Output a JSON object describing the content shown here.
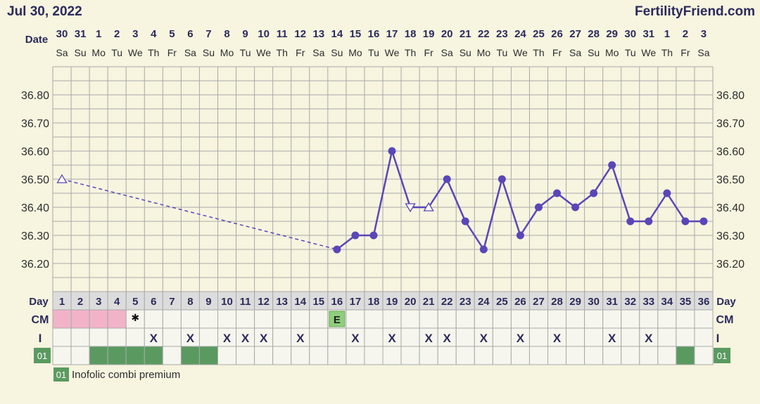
{
  "header": {
    "date_title": "Jul 30, 2022",
    "site": "FertilityFriend.com"
  },
  "labels": {
    "date": "Date",
    "day": "Day",
    "cm": "CM",
    "intercourse": "I",
    "med_code": "01"
  },
  "legend": {
    "code": "01",
    "text": "Inofolic combi premium"
  },
  "colors": {
    "background": "#f7f4df",
    "grid": "#a9a9a9",
    "cell_bg": "#f6f6ef",
    "day_row_bg": "#dcdcdc",
    "line": "#5a46b8",
    "period_pink": "#f2b3c8",
    "med_green": "#5a9a60",
    "egg_white_green": "#8fce7c",
    "label_text": "#2b2a5c"
  },
  "chart_data": {
    "type": "line",
    "title": "",
    "ylabel": "",
    "ylim": [
      36.1,
      36.9
    ],
    "yticks": [
      36.2,
      36.3,
      36.4,
      36.5,
      36.6,
      36.7,
      36.8
    ],
    "yticks_labels": [
      "36.20",
      "36.30",
      "36.40",
      "36.50",
      "36.60",
      "36.70",
      "36.80"
    ],
    "grid": true,
    "dates": [
      "30",
      "31",
      "1",
      "2",
      "3",
      "4",
      "5",
      "6",
      "7",
      "8",
      "9",
      "10",
      "11",
      "12",
      "13",
      "14",
      "15",
      "16",
      "17",
      "18",
      "19",
      "20",
      "21",
      "22",
      "23",
      "24",
      "25",
      "26",
      "27",
      "28",
      "29",
      "30",
      "31",
      "1",
      "2",
      "3"
    ],
    "weekdays": [
      "Sa",
      "Su",
      "Mo",
      "Tu",
      "We",
      "Th",
      "Fr",
      "Sa",
      "Su",
      "Mo",
      "Tu",
      "We",
      "Th",
      "Fr",
      "Sa",
      "Su",
      "Mo",
      "Tu",
      "We",
      "Th",
      "Fr",
      "Sa",
      "Su",
      "Mo",
      "Tu",
      "We",
      "Th",
      "Fr",
      "Sa",
      "Su",
      "Mo",
      "Tu",
      "We",
      "Th",
      "Fr",
      "Sa"
    ],
    "cycle_days": [
      1,
      2,
      3,
      4,
      5,
      6,
      7,
      8,
      9,
      10,
      11,
      12,
      13,
      14,
      15,
      16,
      17,
      18,
      19,
      20,
      21,
      22,
      23,
      24,
      25,
      26,
      27,
      28,
      29,
      30,
      31,
      32,
      33,
      34,
      35,
      36
    ],
    "temperatures": [
      {
        "day": 1,
        "temp": 36.5,
        "marker": "triangle-up"
      },
      {
        "day": 16,
        "temp": 36.25,
        "marker": "dot"
      },
      {
        "day": 17,
        "temp": 36.3,
        "marker": "dot"
      },
      {
        "day": 18,
        "temp": 36.3,
        "marker": "dot"
      },
      {
        "day": 19,
        "temp": 36.6,
        "marker": "dot"
      },
      {
        "day": 20,
        "temp": 36.4,
        "marker": "triangle-down"
      },
      {
        "day": 21,
        "temp": 36.4,
        "marker": "triangle-up"
      },
      {
        "day": 22,
        "temp": 36.5,
        "marker": "dot"
      },
      {
        "day": 23,
        "temp": 36.35,
        "marker": "dot"
      },
      {
        "day": 24,
        "temp": 36.25,
        "marker": "dot"
      },
      {
        "day": 25,
        "temp": 36.5,
        "marker": "dot"
      },
      {
        "day": 26,
        "temp": 36.3,
        "marker": "dot"
      },
      {
        "day": 27,
        "temp": 36.4,
        "marker": "dot"
      },
      {
        "day": 28,
        "temp": 36.45,
        "marker": "dot"
      },
      {
        "day": 29,
        "temp": 36.4,
        "marker": "dot"
      },
      {
        "day": 30,
        "temp": 36.45,
        "marker": "dot"
      },
      {
        "day": 31,
        "temp": 36.55,
        "marker": "dot"
      },
      {
        "day": 32,
        "temp": 36.35,
        "marker": "dot"
      },
      {
        "day": 33,
        "temp": 36.35,
        "marker": "dot"
      },
      {
        "day": 34,
        "temp": 36.45,
        "marker": "dot"
      },
      {
        "day": 35,
        "temp": 36.35,
        "marker": "dot"
      },
      {
        "day": 36,
        "temp": 36.35,
        "marker": "dot"
      }
    ],
    "dashed_segment": [
      1,
      16
    ],
    "cm": {
      "period_days": [
        1,
        2,
        3,
        4
      ],
      "spotting_days": [
        5
      ],
      "spotting_symbol": "✱",
      "egg_white_days": [
        16
      ],
      "egg_white_label": "E"
    },
    "intercourse_days": [
      6,
      8,
      10,
      11,
      12,
      14,
      17,
      19,
      21,
      22,
      24,
      26,
      28,
      31,
      33
    ],
    "intercourse_symbol": "X",
    "medication_days": [
      3,
      4,
      5,
      6,
      8,
      9,
      35
    ]
  }
}
